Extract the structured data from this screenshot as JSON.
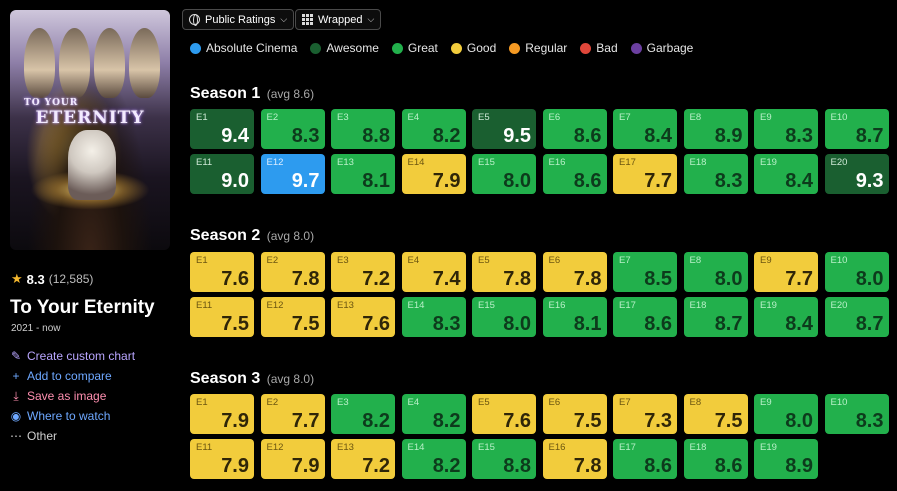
{
  "sidebar": {
    "rating": "8.3",
    "rating_count": "(12,585)",
    "title": "To Your Eternity",
    "years": "2021 - now",
    "poster_art_text": "To Your Eternity",
    "actions": [
      {
        "label": "Create custom chart",
        "icon": "pencil-icon"
      },
      {
        "label": "Add to compare",
        "icon": "plus-icon"
      },
      {
        "label": "Save as image",
        "icon": "download-icon"
      },
      {
        "label": "Where to watch",
        "icon": "eye-icon"
      },
      {
        "label": "Other",
        "icon": "more-icon"
      }
    ]
  },
  "toolbar": {
    "ratings_dropdown": "Public Ratings",
    "layout_dropdown": "Wrapped"
  },
  "legend": [
    {
      "label": "Absolute Cinema",
      "color": "#2d9bef"
    },
    {
      "label": "Awesome",
      "color": "#1a5f30"
    },
    {
      "label": "Great",
      "color": "#22b04c"
    },
    {
      "label": "Good",
      "color": "#f2cc3c"
    },
    {
      "label": "Regular",
      "color": "#f59a23"
    },
    {
      "label": "Bad",
      "color": "#e0473a"
    },
    {
      "label": "Garbage",
      "color": "#6b3fa0"
    }
  ],
  "seasons": [
    {
      "title": "Season 1",
      "avg": "(avg 8.6)",
      "episodes": [
        {
          "ep": "E1",
          "rating": "9.4",
          "tier": "awesome"
        },
        {
          "ep": "E2",
          "rating": "8.3",
          "tier": "great"
        },
        {
          "ep": "E3",
          "rating": "8.8",
          "tier": "great"
        },
        {
          "ep": "E4",
          "rating": "8.2",
          "tier": "great"
        },
        {
          "ep": "E5",
          "rating": "9.5",
          "tier": "awesome"
        },
        {
          "ep": "E6",
          "rating": "8.6",
          "tier": "great"
        },
        {
          "ep": "E7",
          "rating": "8.4",
          "tier": "great"
        },
        {
          "ep": "E8",
          "rating": "8.9",
          "tier": "great"
        },
        {
          "ep": "E9",
          "rating": "8.3",
          "tier": "great"
        },
        {
          "ep": "E10",
          "rating": "8.7",
          "tier": "great"
        },
        {
          "ep": "E11",
          "rating": "9.0",
          "tier": "awesome"
        },
        {
          "ep": "E12",
          "rating": "9.7",
          "tier": "cinema"
        },
        {
          "ep": "E13",
          "rating": "8.1",
          "tier": "great"
        },
        {
          "ep": "E14",
          "rating": "7.9",
          "tier": "good"
        },
        {
          "ep": "E15",
          "rating": "8.0",
          "tier": "great"
        },
        {
          "ep": "E16",
          "rating": "8.6",
          "tier": "great"
        },
        {
          "ep": "E17",
          "rating": "7.7",
          "tier": "good"
        },
        {
          "ep": "E18",
          "rating": "8.3",
          "tier": "great"
        },
        {
          "ep": "E19",
          "rating": "8.4",
          "tier": "great"
        },
        {
          "ep": "E20",
          "rating": "9.3",
          "tier": "awesome"
        }
      ]
    },
    {
      "title": "Season 2",
      "avg": "(avg 8.0)",
      "episodes": [
        {
          "ep": "E1",
          "rating": "7.6",
          "tier": "good"
        },
        {
          "ep": "E2",
          "rating": "7.8",
          "tier": "good"
        },
        {
          "ep": "E3",
          "rating": "7.2",
          "tier": "good"
        },
        {
          "ep": "E4",
          "rating": "7.4",
          "tier": "good"
        },
        {
          "ep": "E5",
          "rating": "7.8",
          "tier": "good"
        },
        {
          "ep": "E6",
          "rating": "7.8",
          "tier": "good"
        },
        {
          "ep": "E7",
          "rating": "8.5",
          "tier": "great"
        },
        {
          "ep": "E8",
          "rating": "8.0",
          "tier": "great"
        },
        {
          "ep": "E9",
          "rating": "7.7",
          "tier": "good"
        },
        {
          "ep": "E10",
          "rating": "8.0",
          "tier": "great"
        },
        {
          "ep": "E11",
          "rating": "7.5",
          "tier": "good"
        },
        {
          "ep": "E12",
          "rating": "7.5",
          "tier": "good"
        },
        {
          "ep": "E13",
          "rating": "7.6",
          "tier": "good"
        },
        {
          "ep": "E14",
          "rating": "8.3",
          "tier": "great"
        },
        {
          "ep": "E15",
          "rating": "8.0",
          "tier": "great"
        },
        {
          "ep": "E16",
          "rating": "8.1",
          "tier": "great"
        },
        {
          "ep": "E17",
          "rating": "8.6",
          "tier": "great"
        },
        {
          "ep": "E18",
          "rating": "8.7",
          "tier": "great"
        },
        {
          "ep": "E19",
          "rating": "8.4",
          "tier": "great"
        },
        {
          "ep": "E20",
          "rating": "8.7",
          "tier": "great"
        }
      ]
    },
    {
      "title": "Season 3",
      "avg": "(avg 8.0)",
      "episodes": [
        {
          "ep": "E1",
          "rating": "7.9",
          "tier": "good"
        },
        {
          "ep": "E2",
          "rating": "7.7",
          "tier": "good"
        },
        {
          "ep": "E3",
          "rating": "8.2",
          "tier": "great"
        },
        {
          "ep": "E4",
          "rating": "8.2",
          "tier": "great"
        },
        {
          "ep": "E5",
          "rating": "7.6",
          "tier": "good"
        },
        {
          "ep": "E6",
          "rating": "7.5",
          "tier": "good"
        },
        {
          "ep": "E7",
          "rating": "7.3",
          "tier": "good"
        },
        {
          "ep": "E8",
          "rating": "7.5",
          "tier": "good"
        },
        {
          "ep": "E9",
          "rating": "8.0",
          "tier": "great"
        },
        {
          "ep": "E10",
          "rating": "8.3",
          "tier": "great"
        },
        {
          "ep": "E11",
          "rating": "7.9",
          "tier": "good"
        },
        {
          "ep": "E12",
          "rating": "7.9",
          "tier": "good"
        },
        {
          "ep": "E13",
          "rating": "7.2",
          "tier": "good"
        },
        {
          "ep": "E14",
          "rating": "8.2",
          "tier": "great"
        },
        {
          "ep": "E15",
          "rating": "8.8",
          "tier": "great"
        },
        {
          "ep": "E16",
          "rating": "7.8",
          "tier": "good"
        },
        {
          "ep": "E17",
          "rating": "8.6",
          "tier": "great"
        },
        {
          "ep": "E18",
          "rating": "8.6",
          "tier": "great"
        },
        {
          "ep": "E19",
          "rating": "8.9",
          "tier": "great"
        }
      ]
    }
  ]
}
